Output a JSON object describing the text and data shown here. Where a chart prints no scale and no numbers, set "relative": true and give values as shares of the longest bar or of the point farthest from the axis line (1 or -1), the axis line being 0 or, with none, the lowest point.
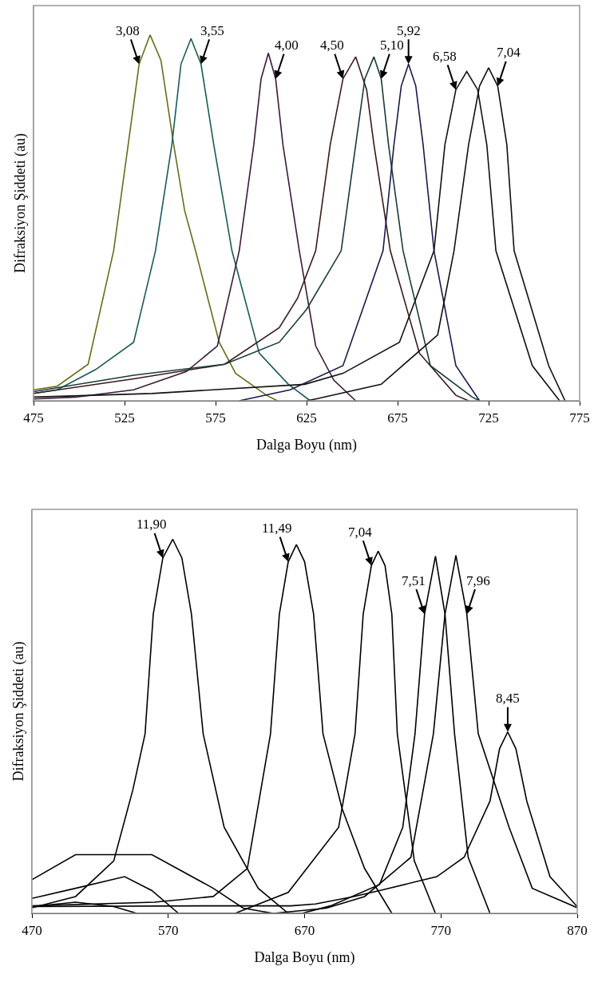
{
  "chart_data": [
    {
      "type": "line",
      "relative": true,
      "xlabel": "Dalga Boyu (nm)",
      "ylabel": "Difraksiyon Şiddeti (au)",
      "xlim": [
        475,
        775
      ],
      "xticks": [
        475,
        525,
        575,
        625,
        675,
        725,
        775
      ],
      "grid": false,
      "marker": "none",
      "line_style": "solid",
      "series": [
        {
          "color": "#6b6b1a",
          "x": [
            475,
            488,
            505,
            519,
            527,
            533,
            539,
            545,
            552,
            558,
            564,
            577,
            586,
            603,
            609
          ],
          "values": [
            0.03,
            0.04,
            0.1,
            0.41,
            0.7,
            0.92,
            1.0,
            0.93,
            0.7,
            0.52,
            0.41,
            0.16,
            0.075,
            0.015,
            0
          ]
        },
        {
          "color": "#1a5a5a",
          "x": [
            475,
            488,
            509,
            530,
            542,
            551,
            556,
            561.5,
            567,
            574,
            584,
            599,
            615,
            627
          ],
          "values": [
            0.02,
            0.03,
            0.085,
            0.16,
            0.41,
            0.7,
            0.92,
            0.99,
            0.92,
            0.7,
            0.41,
            0.13,
            0.045,
            0
          ]
        },
        {
          "color": "#3a1a3a",
          "x": [
            475,
            498,
            530,
            559,
            576,
            588,
            596,
            600,
            604,
            608,
            612,
            621,
            630,
            640,
            652
          ],
          "values": [
            0.005,
            0.01,
            0.03,
            0.08,
            0.15,
            0.41,
            0.7,
            0.88,
            0.95,
            0.88,
            0.7,
            0.41,
            0.15,
            0.056,
            0
          ]
        },
        {
          "color": "#3a1a1a",
          "x": [
            475,
            530,
            580,
            610,
            620,
            630,
            638,
            645,
            652,
            658,
            662,
            671,
            687,
            707,
            714
          ],
          "values": [
            0.02,
            0.06,
            0.1,
            0.2,
            0.28,
            0.41,
            0.7,
            0.88,
            0.94,
            0.85,
            0.7,
            0.41,
            0.13,
            0.015,
            0
          ]
        },
        {
          "color": "#1a3a3a",
          "x": [
            475,
            530,
            580,
            610,
            625,
            644,
            652,
            657,
            662,
            666,
            670,
            678,
            693,
            716,
            720
          ],
          "values": [
            0.025,
            0.07,
            0.1,
            0.16,
            0.25,
            0.41,
            0.7,
            0.88,
            0.94,
            0.88,
            0.7,
            0.41,
            0.096,
            0.01,
            0
          ]
        },
        {
          "color": "#1a1a4a",
          "x": [
            588,
            616,
            645,
            667,
            673,
            677,
            681,
            685,
            689,
            695,
            707,
            720
          ],
          "values": [
            0,
            0.03,
            0.096,
            0.41,
            0.7,
            0.86,
            0.92,
            0.86,
            0.7,
            0.41,
            0.096,
            0
          ]
        },
        {
          "color": "#111111",
          "x": [
            475,
            540,
            624,
            645,
            676,
            695,
            701,
            707,
            713,
            719,
            724,
            729,
            749,
            764
          ],
          "values": [
            0.01,
            0.02,
            0.045,
            0.075,
            0.16,
            0.41,
            0.7,
            0.85,
            0.9,
            0.85,
            0.7,
            0.41,
            0.096,
            0
          ]
        },
        {
          "color": "#111111",
          "x": [
            625,
            630,
            666,
            697,
            706,
            714,
            720,
            725,
            730,
            735,
            739,
            758,
            767
          ],
          "values": [
            0,
            0.005,
            0.045,
            0.18,
            0.41,
            0.7,
            0.86,
            0.91,
            0.86,
            0.7,
            0.41,
            0.096,
            0
          ]
        }
      ],
      "annotations": [
        {
          "text": "3,08",
          "x": 533,
          "y": 0.92
        },
        {
          "text": "3,55",
          "x": 567,
          "y": 0.92
        },
        {
          "text": "4,00",
          "x": 608,
          "y": 0.88
        },
        {
          "text": "4,50",
          "x": 645,
          "y": 0.88
        },
        {
          "text": "5,10",
          "x": 666,
          "y": 0.88
        },
        {
          "text": "5,92",
          "x": 681,
          "y": 0.92
        },
        {
          "text": "6,58",
          "x": 707,
          "y": 0.85
        },
        {
          "text": "7,04",
          "x": 730,
          "y": 0.86
        }
      ]
    },
    {
      "type": "line",
      "relative": true,
      "xlabel": "Dalga Boyu (nm)",
      "ylabel": "Difraksiyon Şiddeti (au)",
      "xlim": [
        470,
        870
      ],
      "xticks": [
        470,
        570,
        670,
        770,
        870
      ],
      "grid": false,
      "marker": "none",
      "line_style": "solid",
      "series": [
        {
          "color": "#000000",
          "x": [
            470,
            502,
            530,
            544,
            553,
            559,
            566,
            573.3,
            580,
            587,
            595.6,
            611,
            636,
            658
          ],
          "values": [
            0.015,
            0.045,
            0.14,
            0.33,
            0.48,
            0.8,
            0.95,
            1.0,
            0.95,
            0.8,
            0.48,
            0.23,
            0.067,
            0
          ]
        },
        {
          "color": "#000000",
          "x": [
            470,
            560,
            603,
            628,
            645,
            651.5,
            658,
            664,
            670,
            676.6,
            683.5,
            697.5,
            714,
            734
          ],
          "values": [
            0.02,
            0.03,
            0.045,
            0.12,
            0.48,
            0.8,
            0.94,
            0.986,
            0.94,
            0.8,
            0.48,
            0.28,
            0.12,
            0
          ]
        },
        {
          "color": "#000000",
          "x": [
            470,
            502,
            530,
            547,
            619,
            658,
            695,
            707,
            713,
            719,
            724,
            729,
            734,
            738,
            750.5,
            766
          ],
          "values": [
            0.018,
            0.03,
            0.018,
            0,
            0,
            0.056,
            0.23,
            0.48,
            0.8,
            0.93,
            0.968,
            0.93,
            0.8,
            0.48,
            0.14,
            0
          ]
        },
        {
          "color": "#000000",
          "x": [
            470,
            502,
            538,
            558,
            577.5,
            668,
            689,
            725,
            742,
            751,
            758,
            766,
            773,
            780,
            790,
            806
          ],
          "values": [
            0.04,
            0.067,
            0.098,
            0.061,
            0,
            0,
            0.02,
            0.077,
            0.23,
            0.48,
            0.8,
            0.955,
            0.8,
            0.48,
            0.15,
            0
          ]
        },
        {
          "color": "#000000",
          "x": [
            470,
            502,
            558,
            603,
            625,
            647,
            686,
            714,
            748,
            764.5,
            773,
            781,
            789,
            797.4,
            820,
            837,
            870
          ],
          "values": [
            0.09,
            0.157,
            0.157,
            0.067,
            0.014,
            0,
            0.014,
            0.045,
            0.15,
            0.48,
            0.8,
            0.957,
            0.8,
            0.48,
            0.23,
            0.067,
            0.015
          ]
        },
        {
          "color": "#000000",
          "x": [
            470,
            600,
            660,
            678,
            706,
            725,
            767,
            787,
            806,
            813,
            819,
            825,
            833,
            850,
            870
          ],
          "values": [
            0.018,
            0.02,
            0.02,
            0.025,
            0.045,
            0.061,
            0.098,
            0.15,
            0.3,
            0.44,
            0.485,
            0.44,
            0.3,
            0.098,
            0.018
          ]
        }
      ],
      "annotations": [
        {
          "text": "11,90",
          "x": 566,
          "y": 0.95
        },
        {
          "text": "11,49",
          "x": 658,
          "y": 0.94
        },
        {
          "text": "7,04",
          "x": 719,
          "y": 0.93
        },
        {
          "text": "7,51",
          "x": 758,
          "y": 0.8
        },
        {
          "text": "7,96",
          "x": 789,
          "y": 0.8
        },
        {
          "text": "8,45",
          "x": 819,
          "y": 0.485
        }
      ]
    }
  ]
}
